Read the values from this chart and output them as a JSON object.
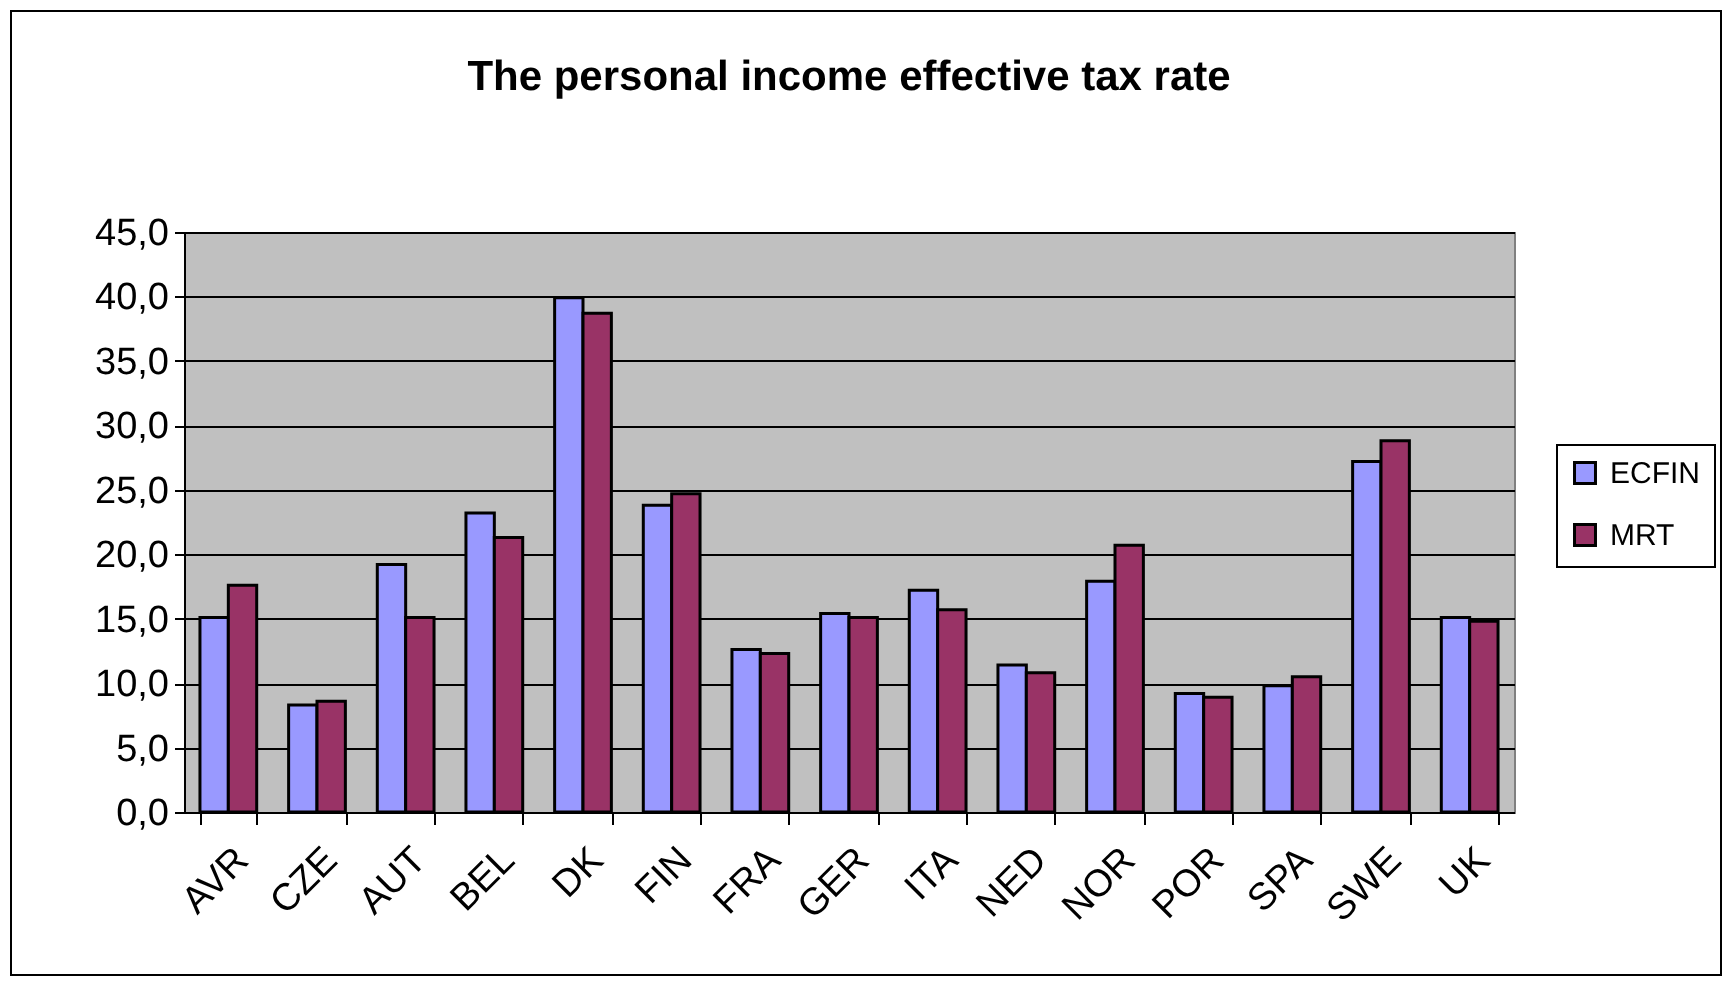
{
  "chart_data": {
    "type": "bar",
    "title": "The personal income effective tax rate",
    "categories": [
      "AVR",
      "CZE",
      "AUT",
      "BEL",
      "DK",
      "FIN",
      "FRA",
      "GER",
      "ITA",
      "NED",
      "NOR",
      "POR",
      "SPA",
      "SWE",
      "UK"
    ],
    "series": [
      {
        "name": "ECFIN",
        "color": "#9999ff",
        "values": [
          15.1,
          8.3,
          19.2,
          23.2,
          39.9,
          23.8,
          12.6,
          15.4,
          17.2,
          11.4,
          17.9,
          9.2,
          9.8,
          27.2,
          15.1
        ]
      },
      {
        "name": "MRT",
        "color": "#993366",
        "values": [
          17.6,
          8.6,
          15.1,
          21.3,
          38.7,
          24.7,
          12.3,
          15.1,
          15.7,
          10.8,
          20.7,
          8.9,
          10.5,
          28.8,
          14.8
        ]
      }
    ],
    "ylim": [
      0,
      45
    ],
    "yticks": [
      {
        "value": 0,
        "label": "0,0"
      },
      {
        "value": 5,
        "label": "5,0"
      },
      {
        "value": 10,
        "label": "10,0"
      },
      {
        "value": 15,
        "label": "15,0"
      },
      {
        "value": 20,
        "label": "20,0"
      },
      {
        "value": 25,
        "label": "25,0"
      },
      {
        "value": 30,
        "label": "30,0"
      },
      {
        "value": 35,
        "label": "35,0"
      },
      {
        "value": 40,
        "label": "40,0"
      },
      {
        "value": 45,
        "label": "45,0"
      }
    ],
    "grid": "y",
    "legend": "right"
  }
}
